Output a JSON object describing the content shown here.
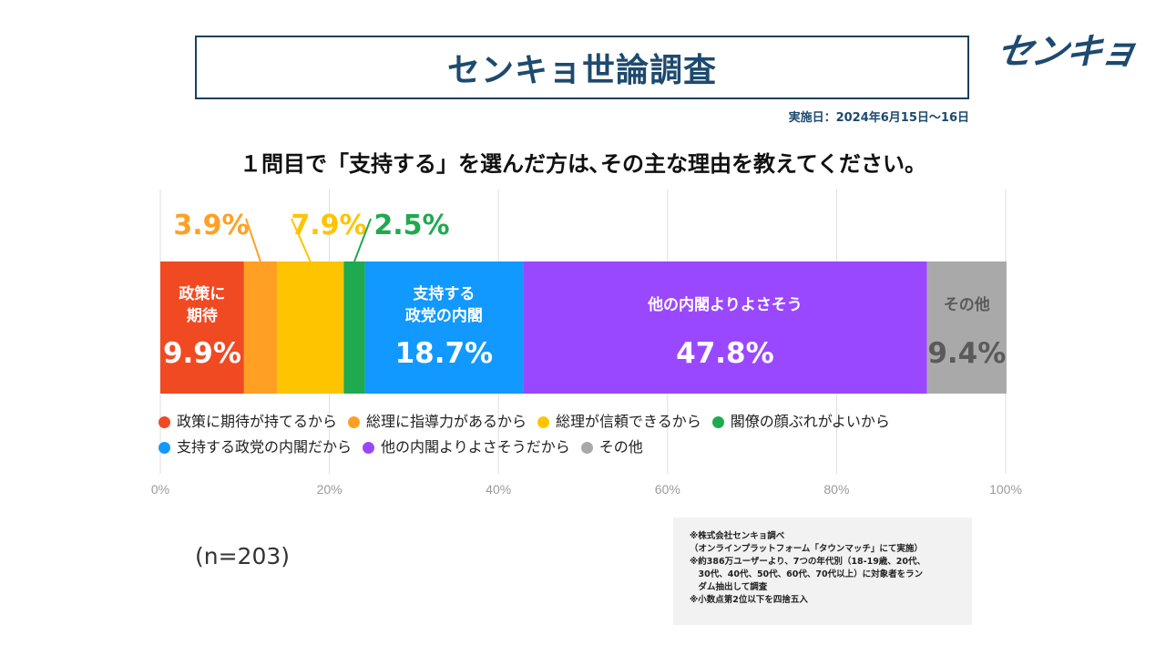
{
  "header": {
    "title": "センキョ世論調査",
    "logo_text": "センキョ",
    "survey_date": "実施日：2024年6月15日～16日"
  },
  "question": "１問目で「支持する」を選んだ方は､その主な理由を教えてください。",
  "chart_data": {
    "type": "bar",
    "orientation": "horizontal-stacked-100",
    "xlim": [
      0,
      100
    ],
    "ticks": [
      "0%",
      "20%",
      "40%",
      "60%",
      "80%",
      "100%"
    ],
    "grid": true,
    "legend_position": "bottom",
    "series": [
      {
        "name": "政策に期待が持てるから",
        "value": 9.9,
        "label_text": "政策に\n期待",
        "value_text": "9.9%",
        "color": "#f04a23",
        "label_inside": true
      },
      {
        "name": "総理に指導力があるから",
        "value": 3.9,
        "value_text": "3.9%",
        "color": "#ffa025",
        "label_inside": false
      },
      {
        "name": "総理が信頼できるから",
        "value": 7.9,
        "value_text": "7.9%",
        "color": "#ffc400",
        "label_inside": false
      },
      {
        "name": "閣僚の顔ぶれがよいから",
        "value": 2.5,
        "value_text": "2.5%",
        "color": "#1faa4f",
        "label_inside": false
      },
      {
        "name": "支持する政党の内閣だから",
        "value": 18.7,
        "label_text": "支持する\n政党の内閣",
        "value_text": "18.7%",
        "color": "#1199ff",
        "label_inside": true
      },
      {
        "name": "他の内閣よりよさそうだから",
        "value": 47.8,
        "label_text": "他の内閣よりよさそう",
        "value_text": "47.8%",
        "color": "#9a48ff",
        "label_inside": true
      },
      {
        "name": "その他",
        "value": 9.4,
        "label_text": "その他",
        "value_text": "9.4%",
        "color": "#a9a9a9",
        "label_inside": true,
        "dark_text": true
      }
    ]
  },
  "legend": {
    "row1": [
      {
        "label": "政策に期待が持てるから",
        "color": "#f04a23"
      },
      {
        "label": "総理に指導力があるから",
        "color": "#ffa025"
      },
      {
        "label": "総理が信頼できるから",
        "color": "#ffc400"
      },
      {
        "label": "閣僚の顔ぶれがよいから",
        "color": "#1faa4f"
      }
    ],
    "row2": [
      {
        "label": "支持する政党の内閣だから",
        "color": "#1199ff"
      },
      {
        "label": "他の内閣よりよさそうだから",
        "color": "#9a48ff"
      },
      {
        "label": "その他",
        "color": "#a9a9a9"
      }
    ]
  },
  "sample_size": "(n=203)",
  "notes": [
    "※株式会社センキョ調べ",
    "（オンラインプラットフォーム「タウンマッチ」にて実施）",
    "※約386万ユーザーより、7つの年代別（18-19歳、20代、",
    "　30代、40代、50代、60代、70代以上）に対象者をラン",
    "　ダム抽出して調査",
    "※小数点第2位以下を四捨五入"
  ]
}
